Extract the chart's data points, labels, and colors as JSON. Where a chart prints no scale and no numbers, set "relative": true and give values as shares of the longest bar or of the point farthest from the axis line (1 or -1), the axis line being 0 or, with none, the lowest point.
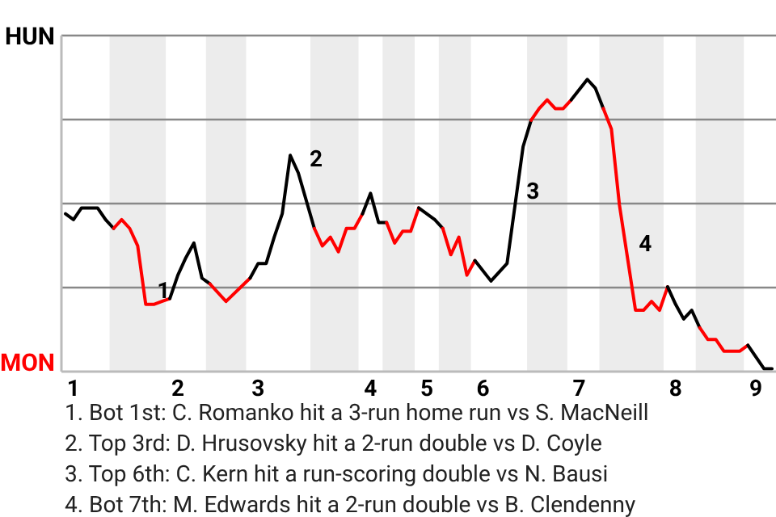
{
  "chart_data": {
    "type": "line",
    "relative": true,
    "grid": "y",
    "categories": [
      null,
      "1",
      null,
      null,
      null,
      null,
      null,
      null,
      null,
      null,
      null,
      null,
      null,
      null,
      "2",
      null,
      null,
      null,
      null,
      null,
      null,
      null,
      null,
      null,
      "3",
      null,
      null,
      null,
      null,
      null,
      null,
      null,
      null,
      null,
      null,
      null,
      null,
      null,
      "4",
      null,
      null,
      null,
      null,
      null,
      null,
      "5",
      null,
      null,
      null,
      null,
      null,
      null,
      "6",
      null,
      null,
      null,
      null,
      null,
      null,
      null,
      null,
      null,
      null,
      null,
      "7",
      null,
      null,
      null,
      null,
      null,
      null,
      null,
      null,
      null,
      null,
      null,
      "8",
      null,
      null,
      null,
      null,
      null,
      null,
      null,
      null,
      null,
      "9",
      null,
      null
    ],
    "series": [
      {
        "color": "#000000",
        "values": [
          0.54,
          0.52,
          0.56,
          null,
          0.56,
          0.52,
          0.49,
          null,
          null,
          null,
          null,
          null,
          null,
          null,
          null,
          null,
          null,
          null,
          null,
          null,
          null,
          null,
          null,
          null,
          null,
          null,
          null,
          null,
          null,
          null,
          null,
          null,
          null,
          null,
          null,
          null,
          null,
          null,
          null,
          null,
          null,
          null,
          null,
          null,
          null,
          null,
          null,
          null,
          null,
          null,
          null,
          null,
          null,
          null,
          null,
          null,
          null,
          null,
          null,
          null,
          null,
          null,
          null,
          null,
          null,
          null,
          null,
          null,
          null,
          null,
          null,
          null,
          null,
          null,
          null,
          null,
          null,
          null,
          null,
          null,
          null,
          null,
          null,
          null,
          null,
          null,
          null,
          null,
          null
        ]
      },
      {
        "color": "#ff0000",
        "values": [
          null,
          null,
          null,
          null,
          null,
          null,
          0.49,
          0.52,
          0.49,
          0.43,
          0.23,
          0.23,
          0.24,
          0.25,
          null,
          null,
          null,
          null,
          null,
          null,
          null,
          null,
          null,
          null,
          null,
          null,
          null,
          null,
          null,
          null,
          null,
          null,
          null,
          null,
          null,
          null,
          null,
          null,
          null,
          null,
          null,
          null,
          null,
          null,
          null,
          null,
          null,
          null,
          null,
          null,
          null,
          null,
          null,
          null,
          null,
          null,
          null,
          null,
          null,
          null,
          null,
          null,
          null,
          null,
          null,
          null,
          null,
          null,
          null,
          null,
          null,
          null,
          null,
          null,
          null,
          null,
          null,
          null,
          null,
          null,
          null,
          null,
          null,
          null,
          null,
          null,
          null,
          null,
          null
        ]
      },
      {
        "color": "#000000",
        "values": [
          null,
          null,
          null,
          null,
          null,
          null,
          null,
          null,
          null,
          null,
          null,
          null,
          null,
          0.25,
          0.33,
          0.39,
          0.44,
          0.32,
          0.3,
          null,
          null,
          null,
          null,
          null,
          null,
          null,
          null,
          null,
          null,
          null,
          null,
          null,
          null,
          null,
          null,
          null,
          null,
          null,
          null,
          null,
          null,
          null,
          null,
          null,
          null,
          null,
          null,
          null,
          null,
          null,
          null,
          null,
          null,
          null,
          null,
          null,
          null,
          null,
          null,
          null,
          null,
          null,
          null,
          null,
          null,
          null,
          null,
          null,
          null,
          null,
          null,
          null,
          null,
          null,
          null,
          null,
          null,
          null,
          null,
          null,
          null,
          null,
          null,
          null,
          null,
          null,
          null,
          null,
          null
        ]
      },
      {
        "color": "#ff0000",
        "values": [
          null,
          null,
          null,
          null,
          null,
          null,
          null,
          null,
          null,
          null,
          null,
          null,
          null,
          null,
          null,
          null,
          null,
          null,
          0.3,
          null,
          0.24,
          null,
          null,
          0.32,
          null,
          null,
          null,
          null,
          null,
          null,
          null,
          null,
          null,
          null,
          null,
          null,
          null,
          null,
          null,
          null,
          null,
          null,
          null,
          null,
          null,
          null,
          null,
          null,
          null,
          null,
          null,
          null,
          null,
          null,
          null,
          null,
          null,
          null,
          null,
          null,
          null,
          null,
          null,
          null,
          null,
          null,
          null,
          null,
          null,
          null,
          null,
          null,
          null,
          null,
          null,
          null,
          null,
          null,
          null,
          null,
          null,
          null,
          null,
          null,
          null,
          null,
          null,
          null,
          null
        ]
      },
      {
        "color": "#000000",
        "values": [
          null,
          null,
          null,
          null,
          null,
          null,
          null,
          null,
          null,
          null,
          null,
          null,
          null,
          null,
          null,
          null,
          null,
          null,
          null,
          null,
          null,
          null,
          null,
          0.32,
          0.37,
          0.37,
          0.46,
          0.54,
          0.74,
          0.68,
          null,
          0.49,
          null,
          null,
          null,
          null,
          null,
          null,
          null,
          null,
          null,
          null,
          null,
          null,
          null,
          null,
          null,
          null,
          null,
          null,
          null,
          null,
          null,
          null,
          null,
          null,
          null,
          null,
          null,
          null,
          null,
          null,
          null,
          null,
          null,
          null,
          null,
          null,
          null,
          null,
          null,
          null,
          null,
          null,
          null,
          null,
          null,
          null,
          null,
          null,
          null,
          null,
          null,
          null,
          null,
          null,
          null,
          null,
          null
        ]
      },
      {
        "color": "#ff0000",
        "values": [
          null,
          null,
          null,
          null,
          null,
          null,
          null,
          null,
          null,
          null,
          null,
          null,
          null,
          null,
          null,
          null,
          null,
          null,
          null,
          null,
          null,
          null,
          null,
          null,
          null,
          null,
          null,
          null,
          null,
          null,
          null,
          0.49,
          0.43,
          0.46,
          0.41,
          0.49,
          0.49,
          0.54,
          null,
          null,
          null,
          null,
          null,
          null,
          null,
          null,
          null,
          null,
          null,
          null,
          null,
          null,
          null,
          null,
          null,
          null,
          null,
          null,
          null,
          null,
          null,
          null,
          null,
          null,
          null,
          null,
          null,
          null,
          null,
          null,
          null,
          null,
          null,
          null,
          null,
          null,
          null,
          null,
          null,
          null,
          null,
          null,
          null,
          null,
          null,
          null,
          null,
          null,
          null
        ]
      },
      {
        "color": "#000000",
        "values": [
          null,
          null,
          null,
          null,
          null,
          null,
          null,
          null,
          null,
          null,
          null,
          null,
          null,
          null,
          null,
          null,
          null,
          null,
          null,
          null,
          null,
          null,
          null,
          null,
          null,
          null,
          null,
          null,
          null,
          null,
          null,
          null,
          null,
          null,
          null,
          null,
          null,
          0.54,
          0.61,
          0.51,
          0.51,
          null,
          null,
          null,
          null,
          null,
          null,
          null,
          null,
          null,
          null,
          null,
          null,
          null,
          null,
          null,
          null,
          null,
          null,
          null,
          null,
          null,
          null,
          null,
          null,
          null,
          null,
          null,
          null,
          null,
          null,
          null,
          null,
          null,
          null,
          null,
          null,
          null,
          null,
          null,
          null,
          null,
          null,
          null,
          null,
          null,
          null,
          null,
          null
        ]
      },
      {
        "color": "#ff0000",
        "values": [
          null,
          null,
          null,
          null,
          null,
          null,
          null,
          null,
          null,
          null,
          null,
          null,
          null,
          null,
          null,
          null,
          null,
          null,
          null,
          null,
          null,
          null,
          null,
          null,
          null,
          null,
          null,
          null,
          null,
          null,
          null,
          null,
          null,
          null,
          null,
          null,
          null,
          null,
          null,
          null,
          0.51,
          0.44,
          0.48,
          0.48,
          0.56,
          null,
          null,
          null,
          null,
          null,
          null,
          null,
          null,
          null,
          null,
          null,
          null,
          null,
          null,
          null,
          null,
          null,
          null,
          null,
          null,
          null,
          null,
          null,
          null,
          null,
          null,
          null,
          null,
          null,
          null,
          null,
          null,
          null,
          null,
          null,
          null,
          null,
          null,
          null,
          null,
          null,
          null,
          null,
          null
        ]
      },
      {
        "color": "#000000",
        "values": [
          null,
          null,
          null,
          null,
          null,
          null,
          null,
          null,
          null,
          null,
          null,
          null,
          null,
          null,
          null,
          null,
          null,
          null,
          null,
          null,
          null,
          null,
          null,
          null,
          null,
          null,
          null,
          null,
          null,
          null,
          null,
          null,
          null,
          null,
          null,
          null,
          null,
          null,
          null,
          null,
          null,
          null,
          null,
          null,
          0.56,
          null,
          0.52,
          0.49,
          null,
          null,
          null,
          null,
          null,
          null,
          null,
          null,
          null,
          null,
          null,
          null,
          null,
          null,
          null,
          null,
          null,
          null,
          null,
          null,
          null,
          null,
          null,
          null,
          null,
          null,
          null,
          null,
          null,
          null,
          null,
          null,
          null,
          null,
          null,
          null,
          null,
          null,
          null,
          null,
          null
        ]
      },
      {
        "color": "#ff0000",
        "values": [
          null,
          null,
          null,
          null,
          null,
          null,
          null,
          null,
          null,
          null,
          null,
          null,
          null,
          null,
          null,
          null,
          null,
          null,
          null,
          null,
          null,
          null,
          null,
          null,
          null,
          null,
          null,
          null,
          null,
          null,
          null,
          null,
          null,
          null,
          null,
          null,
          null,
          null,
          null,
          null,
          null,
          null,
          null,
          null,
          null,
          null,
          null,
          0.49,
          0.4,
          0.46,
          0.33,
          0.38,
          null,
          null,
          null,
          null,
          null,
          null,
          null,
          null,
          null,
          null,
          null,
          null,
          null,
          null,
          null,
          null,
          null,
          null,
          null,
          null,
          null,
          null,
          null,
          null,
          null,
          null,
          null,
          null,
          null,
          null,
          null,
          null,
          null,
          null,
          null,
          null,
          null
        ]
      },
      {
        "color": "#000000",
        "values": [
          null,
          null,
          null,
          null,
          null,
          null,
          null,
          null,
          null,
          null,
          null,
          null,
          null,
          null,
          null,
          null,
          null,
          null,
          null,
          null,
          null,
          null,
          null,
          null,
          null,
          null,
          null,
          null,
          null,
          null,
          null,
          null,
          null,
          null,
          null,
          null,
          null,
          null,
          null,
          null,
          null,
          null,
          null,
          null,
          null,
          null,
          null,
          null,
          null,
          null,
          null,
          0.38,
          null,
          0.31,
          null,
          0.37,
          0.57,
          0.77,
          0.86,
          null,
          null,
          null,
          null,
          null,
          null,
          null,
          null,
          null,
          null,
          null,
          null,
          null,
          null,
          null,
          null,
          null,
          null,
          null,
          null,
          null,
          null,
          null,
          null,
          null,
          null,
          null,
          null,
          null,
          null
        ]
      },
      {
        "color": "#ff0000",
        "values": [
          null,
          null,
          null,
          null,
          null,
          null,
          null,
          null,
          null,
          null,
          null,
          null,
          null,
          null,
          null,
          null,
          null,
          null,
          null,
          null,
          null,
          null,
          null,
          null,
          null,
          null,
          null,
          null,
          null,
          null,
          null,
          null,
          null,
          null,
          null,
          null,
          null,
          null,
          null,
          null,
          null,
          null,
          null,
          null,
          null,
          null,
          null,
          null,
          null,
          null,
          null,
          null,
          null,
          null,
          null,
          null,
          null,
          null,
          0.86,
          0.9,
          0.93,
          0.9,
          0.9,
          0.93,
          null,
          null,
          null,
          null,
          null,
          null,
          null,
          null,
          null,
          null,
          null,
          null,
          null,
          null,
          null,
          null,
          null,
          null,
          null,
          null,
          null,
          null,
          null,
          null,
          null
        ]
      },
      {
        "color": "#000000",
        "values": [
          null,
          null,
          null,
          null,
          null,
          null,
          null,
          null,
          null,
          null,
          null,
          null,
          null,
          null,
          null,
          null,
          null,
          null,
          null,
          null,
          null,
          null,
          null,
          null,
          null,
          null,
          null,
          null,
          null,
          null,
          null,
          null,
          null,
          null,
          null,
          null,
          null,
          null,
          null,
          null,
          null,
          null,
          null,
          null,
          null,
          null,
          null,
          null,
          null,
          null,
          null,
          null,
          null,
          null,
          null,
          null,
          null,
          null,
          null,
          null,
          null,
          null,
          null,
          0.93,
          null,
          1,
          0.97,
          0.9,
          null,
          null,
          null,
          null,
          null,
          null,
          null,
          null,
          null,
          null,
          null,
          null,
          null,
          null,
          null,
          null,
          null,
          null,
          null,
          null,
          null
        ]
      },
      {
        "color": "#ff0000",
        "values": [
          null,
          null,
          null,
          null,
          null,
          null,
          null,
          null,
          null,
          null,
          null,
          null,
          null,
          null,
          null,
          null,
          null,
          null,
          null,
          null,
          null,
          null,
          null,
          null,
          null,
          null,
          null,
          null,
          null,
          null,
          null,
          null,
          null,
          null,
          null,
          null,
          null,
          null,
          null,
          null,
          null,
          null,
          null,
          null,
          null,
          null,
          null,
          null,
          null,
          null,
          null,
          null,
          null,
          null,
          null,
          null,
          null,
          null,
          null,
          null,
          null,
          null,
          null,
          null,
          null,
          null,
          null,
          0.9,
          0.83,
          0.57,
          0.39,
          0.21,
          0.21,
          0.24,
          0.21,
          0.29,
          null,
          null,
          null,
          null,
          null,
          null,
          null,
          null,
          null,
          null,
          null,
          null,
          null
        ]
      },
      {
        "color": "#000000",
        "values": [
          null,
          null,
          null,
          null,
          null,
          null,
          null,
          null,
          null,
          null,
          null,
          null,
          null,
          null,
          null,
          null,
          null,
          null,
          null,
          null,
          null,
          null,
          null,
          null,
          null,
          null,
          null,
          null,
          null,
          null,
          null,
          null,
          null,
          null,
          null,
          null,
          null,
          null,
          null,
          null,
          null,
          null,
          null,
          null,
          null,
          null,
          null,
          null,
          null,
          null,
          null,
          null,
          null,
          null,
          null,
          null,
          null,
          null,
          null,
          null,
          null,
          null,
          null,
          null,
          null,
          null,
          null,
          null,
          null,
          null,
          null,
          null,
          null,
          null,
          null,
          0.29,
          0.23,
          0.18,
          0.21,
          0.15,
          null,
          null,
          null,
          null,
          null,
          null,
          null,
          null,
          null
        ]
      },
      {
        "color": "#ff0000",
        "values": [
          null,
          null,
          null,
          null,
          null,
          null,
          null,
          null,
          null,
          null,
          null,
          null,
          null,
          null,
          null,
          null,
          null,
          null,
          null,
          null,
          null,
          null,
          null,
          null,
          null,
          null,
          null,
          null,
          null,
          null,
          null,
          null,
          null,
          null,
          null,
          null,
          null,
          null,
          null,
          null,
          null,
          null,
          null,
          null,
          null,
          null,
          null,
          null,
          null,
          null,
          null,
          null,
          null,
          null,
          null,
          null,
          null,
          null,
          null,
          null,
          null,
          null,
          null,
          null,
          null,
          null,
          null,
          null,
          null,
          null,
          null,
          null,
          null,
          null,
          null,
          null,
          null,
          null,
          null,
          0.15,
          0.11,
          0.11,
          0.07,
          null,
          0.07,
          0.09,
          null,
          null,
          null
        ]
      },
      {
        "color": "#000000",
        "values": [
          null,
          null,
          null,
          null,
          null,
          null,
          null,
          null,
          null,
          null,
          null,
          null,
          null,
          null,
          null,
          null,
          null,
          null,
          null,
          null,
          null,
          null,
          null,
          null,
          null,
          null,
          null,
          null,
          null,
          null,
          null,
          null,
          null,
          null,
          null,
          null,
          null,
          null,
          null,
          null,
          null,
          null,
          null,
          null,
          null,
          null,
          null,
          null,
          null,
          null,
          null,
          null,
          null,
          null,
          null,
          null,
          null,
          null,
          null,
          null,
          null,
          null,
          null,
          null,
          null,
          null,
          null,
          null,
          null,
          null,
          null,
          null,
          null,
          null,
          null,
          null,
          null,
          null,
          null,
          null,
          null,
          null,
          null,
          null,
          null,
          0.09,
          0.05,
          0.01,
          0.01
        ]
      }
    ],
    "annotations": [
      "HUN",
      "MON",
      "1",
      "2",
      "3",
      "4",
      "1. Bot 1st: C. Romanko hit a 3-run home run vs S. MacNeill",
      "2. Top 3rd: D. Hrusovsky hit a 2-run double vs D. Coyle",
      "3. Top 6th: C. Kern hit a run-scoring double vs N. Bausi",
      "4. Bot 7th: M. Edwards hit a 2-run double vs B. Clendenny"
    ]
  }
}
